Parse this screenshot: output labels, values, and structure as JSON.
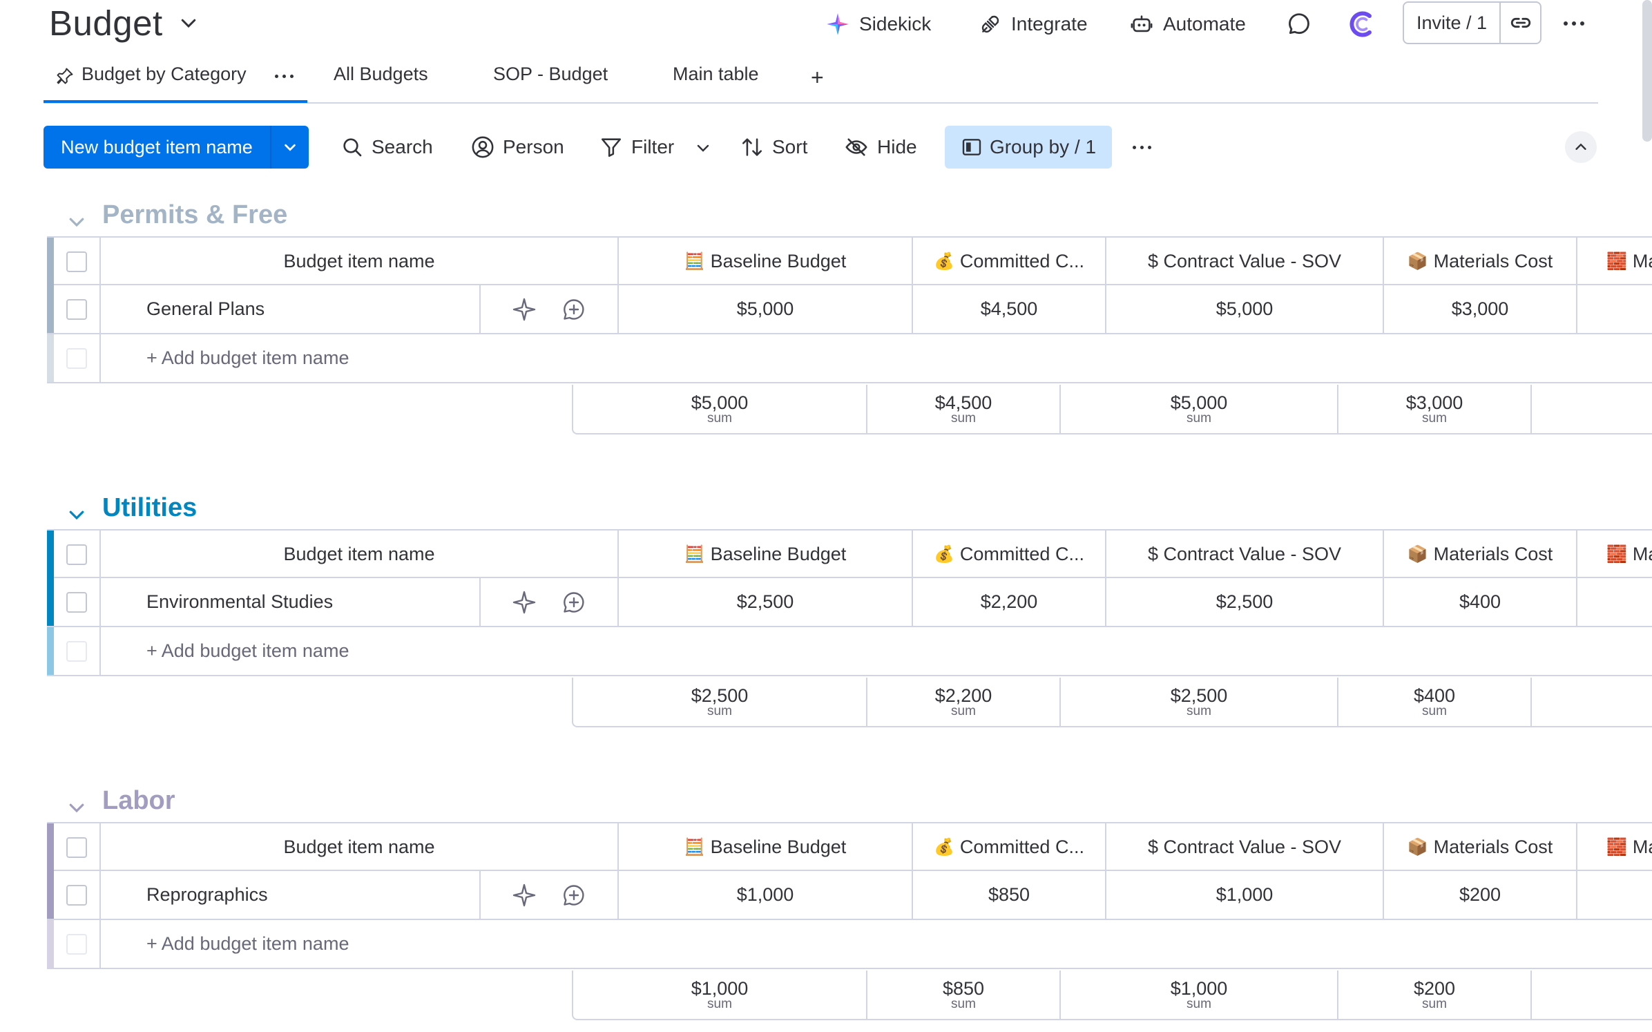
{
  "header": {
    "title": "Budget",
    "actions": {
      "sidekick": "Sidekick",
      "integrate": "Integrate",
      "automate": "Automate"
    },
    "invite": "Invite / 1"
  },
  "tabs": [
    {
      "label": "Budget by Category",
      "active": true
    },
    {
      "label": "All Budgets"
    },
    {
      "label": "SOP - Budget"
    },
    {
      "label": "Main table"
    }
  ],
  "toolbar": {
    "new_item": "New budget item name",
    "search": "Search",
    "person": "Person",
    "filter": "Filter",
    "sort": "Sort",
    "hide": "Hide",
    "group_by": "Group by / 1"
  },
  "columns": {
    "name": "Budget item name",
    "baseline": "Baseline Budget",
    "committed": "Committed C...",
    "contract": "$ Contract Value - SOV",
    "materials": "Materials Cost",
    "materials2": "Materi"
  },
  "add_item_label": "+ Add budget item name",
  "sum_label": "sum",
  "groups": [
    {
      "title": "Permits & Free",
      "color": "#a3b4c6",
      "item": {
        "name": "General Plans",
        "baseline": "$5,000",
        "committed": "$4,500",
        "contract": "$5,000",
        "materials": "$3,000"
      },
      "sums": {
        "baseline": "$5,000",
        "committed": "$4,500",
        "contract": "$5,000",
        "materials": "$3,000"
      }
    },
    {
      "title": "Utilities",
      "color": "#0086c0",
      "item": {
        "name": "Environmental Studies",
        "baseline": "$2,500",
        "committed": "$2,200",
        "contract": "$2,500",
        "materials": "$400"
      },
      "sums": {
        "baseline": "$2,500",
        "committed": "$2,200",
        "contract": "$2,500",
        "materials": "$400"
      }
    },
    {
      "title": "Labor",
      "color": "#a39cc1",
      "item": {
        "name": "Reprographics",
        "baseline": "$1,000",
        "committed": "$850",
        "contract": "$1,000",
        "materials": "$200"
      },
      "sums": {
        "baseline": "$1,000",
        "committed": "$850",
        "contract": "$1,000",
        "materials": "$200"
      }
    }
  ]
}
